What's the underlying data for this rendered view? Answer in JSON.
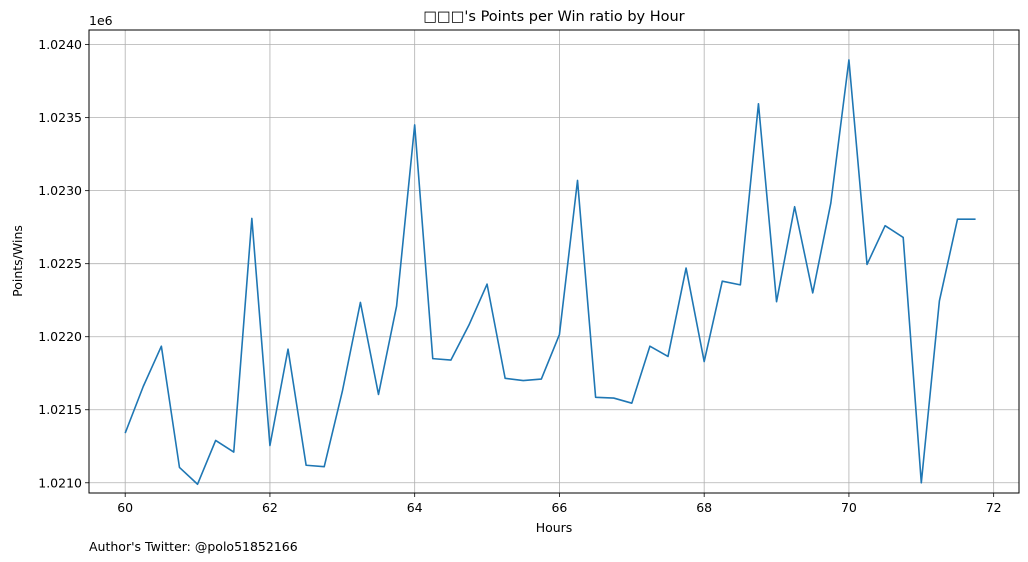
{
  "chart_data": {
    "type": "line",
    "title": "□□□'s Points per Win ratio by Hour",
    "xlabel": "Hours",
    "ylabel": "Points/Wins",
    "y_offset_label": "1e6",
    "xlim": [
      59.5,
      72.35
    ],
    "ylim": [
      1020930,
      1024100
    ],
    "x_ticks": [
      60,
      62,
      64,
      66,
      68,
      70,
      72
    ],
    "y_ticks": [
      1021000,
      1021500,
      1022000,
      1022500,
      1023000,
      1023500,
      1024000
    ],
    "y_tick_labels": [
      "1.0210",
      "1.0215",
      "1.0220",
      "1.0225",
      "1.0230",
      "1.0235",
      "1.0240"
    ],
    "grid": true,
    "line_color": "#1f77b4",
    "series": [
      {
        "x": [
          60.0,
          60.25,
          60.5,
          60.75,
          61.0,
          61.25,
          61.5,
          61.75,
          62.0,
          62.25,
          62.5,
          62.75,
          63.0,
          63.25,
          63.5,
          63.75,
          64.0,
          64.25,
          64.5,
          64.75,
          65.0,
          65.25,
          65.5,
          65.75,
          66.0,
          66.25,
          66.5,
          66.75,
          67.0,
          67.25,
          67.5,
          67.75,
          68.0,
          68.25,
          68.5,
          68.75,
          69.0,
          69.25,
          69.5,
          69.75,
          70.0,
          70.25,
          70.5,
          70.75,
          71.0,
          71.25,
          71.5,
          71.75
        ],
        "y": [
          1021340,
          1021660,
          1021935,
          1021105,
          1020990,
          1021290,
          1021210,
          1022810,
          1021255,
          1021915,
          1021120,
          1021110,
          1021625,
          1022235,
          1021605,
          1022210,
          1023450,
          1021850,
          1021840,
          1022080,
          1022360,
          1021715,
          1021700,
          1021710,
          1022015,
          1023070,
          1021585,
          1021580,
          1021545,
          1021935,
          1021865,
          1022470,
          1021830,
          1022380,
          1022355,
          1023595,
          1022240,
          1022890,
          1022300,
          1022915,
          1023895,
          1022495,
          1022760,
          1022680,
          1021000,
          1022245,
          1022805,
          1022805
        ]
      }
    ]
  },
  "footer": {
    "text": "Author's Twitter: @polo51852166"
  }
}
